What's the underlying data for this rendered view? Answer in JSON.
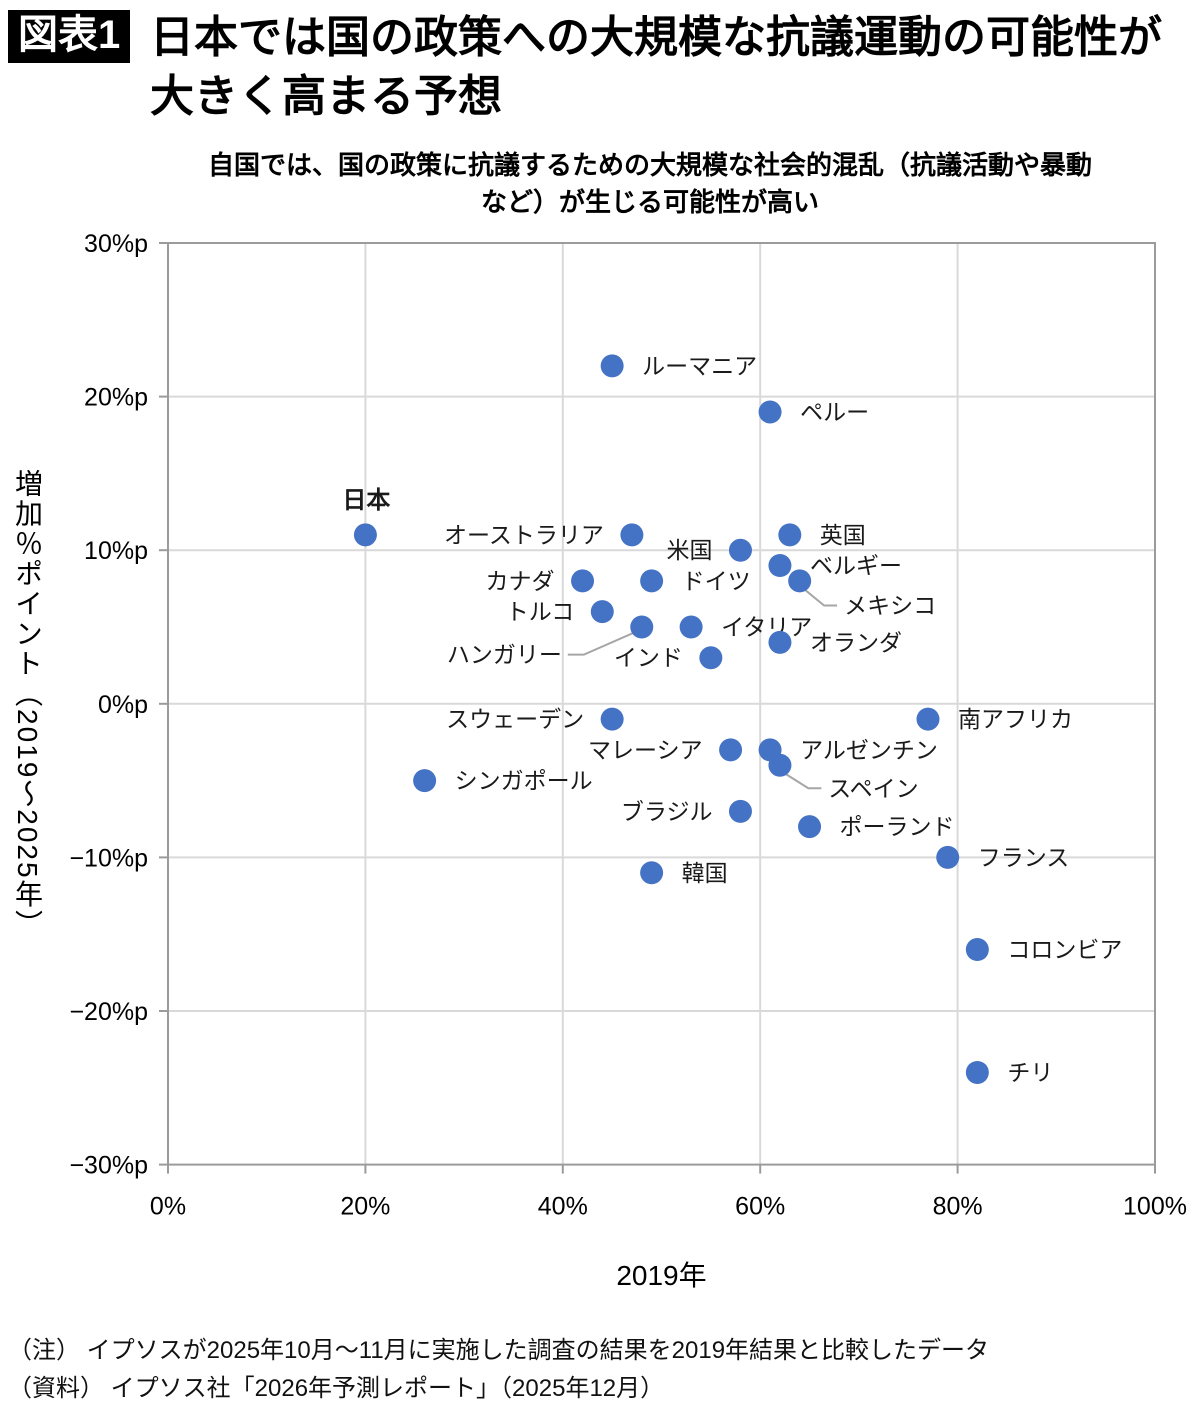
{
  "figure": {
    "tag": "図表1",
    "title_line1": "日本では国の政策への大規模な抗議運動の可能性が",
    "title_line2": "大きく高まる予想"
  },
  "subtitle": {
    "line1": "自国では、国の政策に抗議するための大規模な社会的混乱（抗議活動や暴動",
    "line2": "など）が生じる可能性が高い"
  },
  "notes": {
    "note": "（注） イプソスが2025年10月～11月に実施した調査の結果を2019年結果と比較したデータ",
    "source": "（資料） イプソス社「2026年予測レポート」（2025年12月）"
  },
  "chart_data": {
    "type": "scatter",
    "title": "自国では、国の政策に抗議するための大規模な社会的混乱（抗議活動や暴動など）が生じる可能性が高い",
    "xlabel": "2019年",
    "ylabel": "増加％ポイント（2019～2025年）",
    "xlim": [
      0,
      100
    ],
    "ylim": [
      -30,
      30
    ],
    "grid": true,
    "dot_color": "#4472c4",
    "highlight_color": "#e60000",
    "label_color": "#1a1a1a",
    "x_ticks": [
      {
        "v": 0,
        "label": "0%"
      },
      {
        "v": 20,
        "label": "20%"
      },
      {
        "v": 40,
        "label": "40%"
      },
      {
        "v": 60,
        "label": "60%"
      },
      {
        "v": 80,
        "label": "80%"
      },
      {
        "v": 100,
        "label": "100%"
      }
    ],
    "y_ticks": [
      {
        "v": 30,
        "label": "30%p"
      },
      {
        "v": 20,
        "label": "20%p"
      },
      {
        "v": 10,
        "label": "10%p"
      },
      {
        "v": 0,
        "label": "0%p"
      },
      {
        "v": -10,
        "label": "−10%p"
      },
      {
        "v": -20,
        "label": "−20%p"
      },
      {
        "v": -30,
        "label": "−30%p"
      }
    ],
    "points": [
      {
        "label": "ルーマニア",
        "x": 45,
        "y": 22,
        "anchor": "right"
      },
      {
        "label": "ペルー",
        "x": 61,
        "y": 19,
        "anchor": "right"
      },
      {
        "label": "日本",
        "x": 20,
        "y": 11,
        "anchor": "above",
        "highlight": true
      },
      {
        "label": "オーストラリア",
        "x": 47,
        "y": 11,
        "anchor": "left"
      },
      {
        "label": "米国",
        "x": 58,
        "y": 10,
        "anchor": "left"
      },
      {
        "label": "英国",
        "x": 63,
        "y": 11,
        "anchor": "right"
      },
      {
        "label": "ベルギー",
        "x": 62,
        "y": 9,
        "anchor": "right"
      },
      {
        "label": "メキシコ",
        "x": 64,
        "y": 8,
        "anchor": "leader",
        "align": "start",
        "label_x": 68.5,
        "label_y": 6.4
      },
      {
        "label": "カナダ",
        "x": 42,
        "y": 8,
        "anchor": "left"
      },
      {
        "label": "ドイツ",
        "x": 49,
        "y": 8,
        "anchor": "right"
      },
      {
        "label": "トルコ",
        "x": 44,
        "y": 6,
        "anchor": "left"
      },
      {
        "label": "ハンガリー",
        "x": 48,
        "y": 5,
        "anchor": "leader",
        "align": "end",
        "label_x": 39.9,
        "label_y": 3.2
      },
      {
        "label": "イタリア",
        "x": 53,
        "y": 5,
        "anchor": "right"
      },
      {
        "label": "オランダ",
        "x": 62,
        "y": 4,
        "anchor": "right"
      },
      {
        "label": "インド",
        "x": 55,
        "y": 3,
        "anchor": "left"
      },
      {
        "label": "スウェーデン",
        "x": 45,
        "y": -1,
        "anchor": "left"
      },
      {
        "label": "南アフリカ",
        "x": 77,
        "y": -1,
        "anchor": "right"
      },
      {
        "label": "マレーシア",
        "x": 57,
        "y": -3,
        "anchor": "left"
      },
      {
        "label": "アルゼンチン",
        "x": 61,
        "y": -3,
        "anchor": "right"
      },
      {
        "label": "スペイン",
        "x": 62,
        "y": -4,
        "anchor": "leader",
        "align": "start",
        "label_x": 66.9,
        "label_y": -5.5
      },
      {
        "label": "シンガポール",
        "x": 26,
        "y": -5,
        "anchor": "right"
      },
      {
        "label": "ブラジル",
        "x": 58,
        "y": -7,
        "anchor": "left"
      },
      {
        "label": "ポーランド",
        "x": 65,
        "y": -8,
        "anchor": "right"
      },
      {
        "label": "フランス",
        "x": 79,
        "y": -10,
        "anchor": "right"
      },
      {
        "label": "韓国",
        "x": 49,
        "y": -11,
        "anchor": "right"
      },
      {
        "label": "コロンビア",
        "x": 82,
        "y": -16,
        "anchor": "right"
      },
      {
        "label": "チリ",
        "x": 82,
        "y": -24,
        "anchor": "right"
      }
    ]
  }
}
